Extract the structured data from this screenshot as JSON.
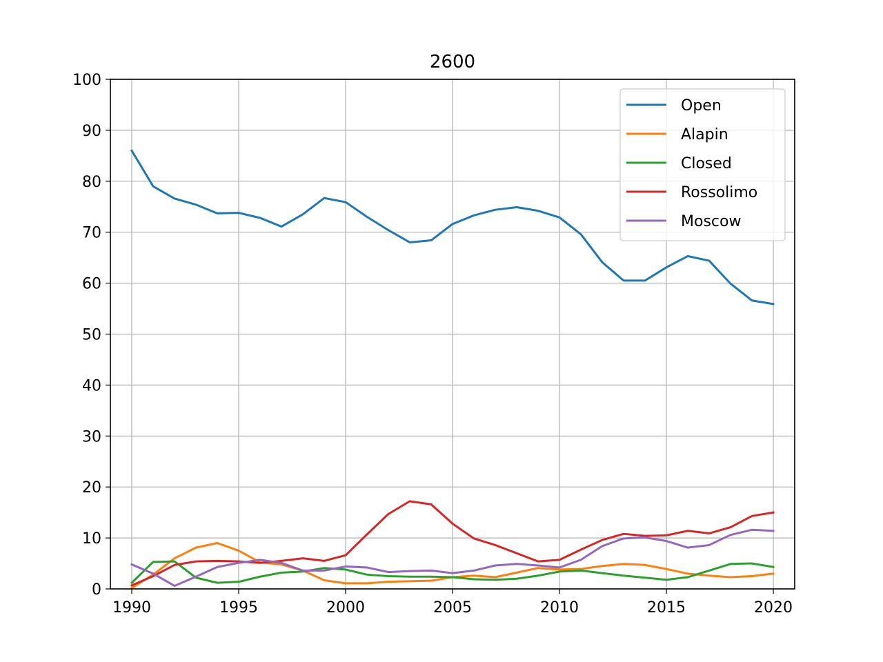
{
  "chart_data": {
    "type": "line",
    "title": "2600",
    "xlabel": "",
    "ylabel": "",
    "xlim": [
      1989,
      2021
    ],
    "ylim": [
      0,
      100
    ],
    "xticks": [
      1990,
      1995,
      2000,
      2005,
      2010,
      2015,
      2020
    ],
    "yticks": [
      0,
      10,
      20,
      30,
      40,
      50,
      60,
      70,
      80,
      90,
      100
    ],
    "grid": true,
    "legend_position": "top-right",
    "x": [
      1990,
      1991,
      1992,
      1993,
      1994,
      1995,
      1996,
      1997,
      1998,
      1999,
      2000,
      2001,
      2002,
      2003,
      2004,
      2005,
      2006,
      2007,
      2008,
      2009,
      2010,
      2011,
      2012,
      2013,
      2014,
      2015,
      2016,
      2017,
      2018,
      2019,
      2020
    ],
    "series": [
      {
        "name": "Open",
        "color": "#1f77b4",
        "values": [
          86.0,
          79.0,
          76.6,
          75.4,
          73.7,
          73.8,
          72.8,
          71.1,
          73.5,
          76.7,
          75.9,
          73.0,
          70.4,
          68.0,
          68.4,
          71.6,
          73.3,
          74.4,
          74.9,
          74.2,
          72.9,
          69.6,
          64.1,
          60.5,
          60.5,
          63.1,
          65.3,
          64.4,
          59.9,
          56.6,
          55.9
        ]
      },
      {
        "name": "Alapin",
        "color": "#ff7f0e",
        "values": [
          0.2,
          2.8,
          6.0,
          8.1,
          9.0,
          7.5,
          5.2,
          4.8,
          3.6,
          1.7,
          1.1,
          1.1,
          1.4,
          1.5,
          1.6,
          2.3,
          2.6,
          2.3,
          3.2,
          4.1,
          3.8,
          3.9,
          4.5,
          4.9,
          4.7,
          3.9,
          3.0,
          2.6,
          2.3,
          2.5,
          3.0
        ]
      },
      {
        "name": "Closed",
        "color": "#2ca02c",
        "values": [
          1.2,
          5.3,
          5.4,
          2.2,
          1.2,
          1.4,
          2.4,
          3.2,
          3.4,
          4.1,
          3.8,
          2.8,
          2.5,
          2.4,
          2.4,
          2.3,
          1.9,
          1.8,
          2.0,
          2.6,
          3.4,
          3.6,
          3.1,
          2.6,
          2.2,
          1.8,
          2.3,
          3.6,
          4.9,
          5.0,
          4.3
        ]
      },
      {
        "name": "Rossolimo",
        "color": "#d62728",
        "values": [
          0.7,
          2.5,
          4.7,
          5.4,
          5.5,
          5.4,
          5.1,
          5.5,
          6.0,
          5.5,
          6.6,
          10.7,
          14.7,
          17.2,
          16.6,
          12.8,
          9.9,
          8.6,
          7.0,
          5.4,
          5.7,
          7.7,
          9.6,
          10.8,
          10.4,
          10.5,
          11.4,
          10.9,
          12.1,
          14.3,
          15.0
        ]
      },
      {
        "name": "Moscow",
        "color": "#9467bd",
        "values": [
          4.8,
          3.0,
          0.6,
          2.4,
          4.3,
          5.1,
          5.7,
          5.1,
          3.6,
          3.6,
          4.4,
          4.2,
          3.3,
          3.5,
          3.6,
          3.1,
          3.6,
          4.6,
          4.9,
          4.6,
          4.2,
          5.7,
          8.4,
          9.9,
          10.1,
          9.4,
          8.1,
          8.6,
          10.6,
          11.6,
          11.4
        ]
      }
    ]
  }
}
